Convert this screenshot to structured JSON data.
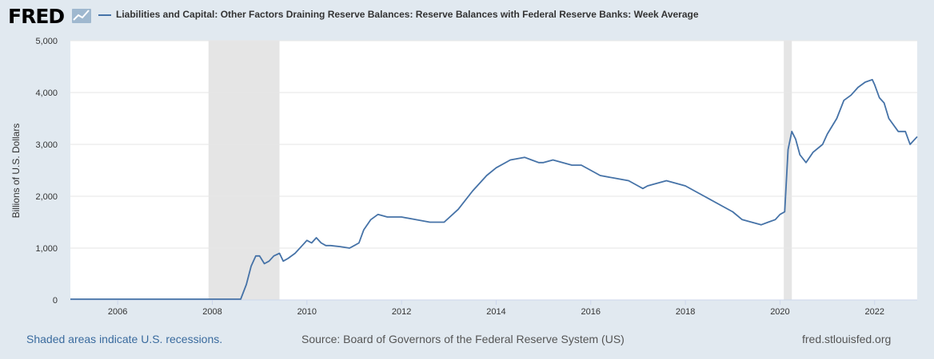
{
  "header": {
    "logo_text": "FRED",
    "logo_icon": "chart-line-icon",
    "legend_label": "Liabilities and Capital: Other Factors Draining Reserve Balances: Reserve Balances with Federal Reserve Banks: Week Average",
    "line_color": "#4572a7"
  },
  "footer": {
    "recession_note": "Shaded areas indicate U.S. recessions.",
    "source": "Source: Board of Governors of the Federal Reserve System (US)",
    "site": "fred.stlouisfed.org"
  },
  "chart_data": {
    "type": "line",
    "title": "",
    "xlabel": "",
    "ylabel": "Billions of U.S. Dollars",
    "xlim": [
      2005.0,
      2022.9
    ],
    "ylim": [
      0,
      5000
    ],
    "y_ticks": [
      0,
      1000,
      2000,
      3000,
      4000,
      5000
    ],
    "y_tick_labels": [
      "0",
      "1,000",
      "2,000",
      "3,000",
      "4,000",
      "5,000"
    ],
    "x_ticks": [
      2006,
      2008,
      2010,
      2012,
      2014,
      2016,
      2018,
      2020,
      2022
    ],
    "x_tick_labels": [
      "2006",
      "2008",
      "2010",
      "2012",
      "2014",
      "2016",
      "2018",
      "2020",
      "2022"
    ],
    "grid": true,
    "legend": "top",
    "recessions": [
      [
        2007.92,
        2009.42
      ],
      [
        2020.08,
        2020.25
      ]
    ],
    "series": [
      {
        "color": "#4572a7",
        "x": [
          2005.0,
          2006.0,
          2007.0,
          2007.9,
          2008.2,
          2008.6,
          2008.72,
          2008.82,
          2008.92,
          2009.0,
          2009.1,
          2009.2,
          2009.3,
          2009.42,
          2009.5,
          2009.6,
          2009.75,
          2009.9,
          2010.0,
          2010.1,
          2010.2,
          2010.3,
          2010.4,
          2010.5,
          2010.7,
          2010.9,
          2011.0,
          2011.1,
          2011.2,
          2011.35,
          2011.5,
          2011.7,
          2012.0,
          2012.3,
          2012.6,
          2012.9,
          2013.2,
          2013.5,
          2013.8,
          2014.0,
          2014.3,
          2014.6,
          2014.75,
          2014.9,
          2015.0,
          2015.2,
          2015.4,
          2015.6,
          2015.8,
          2016.0,
          2016.2,
          2016.5,
          2016.8,
          2017.0,
          2017.1,
          2017.2,
          2017.4,
          2017.6,
          2017.8,
          2018.0,
          2018.2,
          2018.4,
          2018.6,
          2018.8,
          2019.0,
          2019.2,
          2019.4,
          2019.6,
          2019.75,
          2019.9,
          2020.0,
          2020.1,
          2020.17,
          2020.25,
          2020.33,
          2020.42,
          2020.55,
          2020.7,
          2020.9,
          2021.0,
          2021.2,
          2021.35,
          2021.5,
          2021.65,
          2021.8,
          2021.95,
          2022.0,
          2022.1,
          2022.2,
          2022.3,
          2022.5,
          2022.65,
          2022.75,
          2022.9
        ],
        "values": [
          15,
          15,
          15,
          15,
          15,
          15,
          300,
          650,
          850,
          850,
          700,
          750,
          850,
          900,
          750,
          800,
          900,
          1050,
          1150,
          1100,
          1200,
          1100,
          1050,
          1050,
          1030,
          1000,
          1050,
          1100,
          1350,
          1550,
          1650,
          1600,
          1600,
          1550,
          1500,
          1500,
          1750,
          2100,
          2400,
          2550,
          2700,
          2750,
          2700,
          2650,
          2650,
          2700,
          2650,
          2600,
          2600,
          2500,
          2400,
          2350,
          2300,
          2200,
          2150,
          2200,
          2250,
          2300,
          2250,
          2200,
          2100,
          2000,
          1900,
          1800,
          1700,
          1550,
          1500,
          1450,
          1500,
          1550,
          1650,
          1700,
          2900,
          3250,
          3100,
          2800,
          2650,
          2850,
          3000,
          3200,
          3500,
          3850,
          3950,
          4100,
          4200,
          4250,
          4150,
          3900,
          3800,
          3500,
          3250,
          3250,
          3000,
          3150
        ]
      }
    ]
  }
}
